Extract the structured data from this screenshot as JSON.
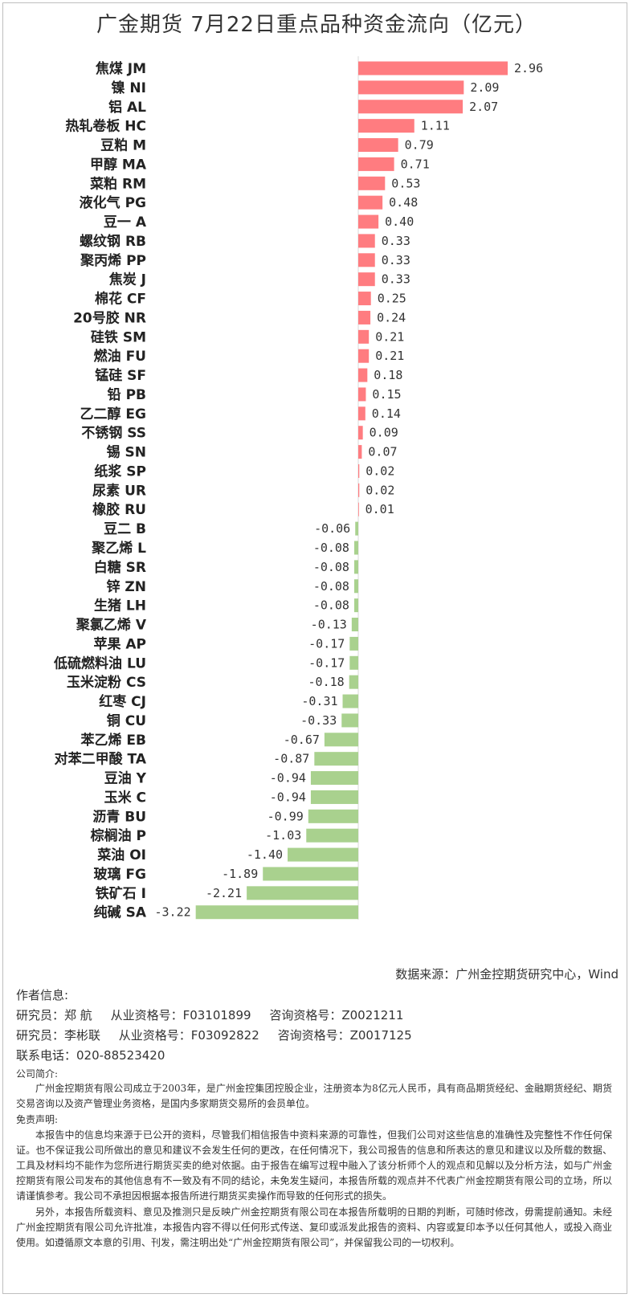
{
  "title": "广金期货 7月22日重点品种资金流向（亿元）",
  "chart_data": {
    "type": "bar",
    "orientation": "horizontal",
    "title": "广金期货 7月22日重点品种资金流向（亿元）",
    "positive_color": "#ff7c80",
    "negative_color": "#a9d18e",
    "categories": [
      "焦煤 JM",
      "镍 NI",
      "铝 AL",
      "热轧卷板 HC",
      "豆粕 M",
      "甲醇 MA",
      "菜粕 RM",
      "液化气 PG",
      "豆一 A",
      "螺纹钢 RB",
      "聚丙烯 PP",
      "焦炭 J",
      "棉花 CF",
      "20号胶 NR",
      "硅铁 SM",
      "燃油 FU",
      "锰硅 SF",
      "铅 PB",
      "乙二醇 EG",
      "不锈钢 SS",
      "锡 SN",
      "纸浆 SP",
      "尿素 UR",
      "橡胶 RU",
      "豆二 B",
      "聚乙烯 L",
      "白糖 SR",
      "锌 ZN",
      "生猪 LH",
      "聚氯乙烯 V",
      "苹果 AP",
      "低硫燃料油 LU",
      "玉米淀粉 CS",
      "红枣 CJ",
      "铜 CU",
      "苯乙烯 EB",
      "对苯二甲酸 TA",
      "豆油 Y",
      "玉米 C",
      "沥青 BU",
      "棕榈油 P",
      "菜油 OI",
      "玻璃 FG",
      "铁矿石 I",
      "纯碱 SA"
    ],
    "values": [
      2.96,
      2.09,
      2.07,
      1.11,
      0.79,
      0.71,
      0.53,
      0.48,
      0.4,
      0.33,
      0.33,
      0.33,
      0.25,
      0.24,
      0.21,
      0.21,
      0.18,
      0.15,
      0.14,
      0.09,
      0.07,
      0.02,
      0.02,
      0.01,
      -0.06,
      -0.08,
      -0.08,
      -0.08,
      -0.08,
      -0.13,
      -0.17,
      -0.17,
      -0.18,
      -0.31,
      -0.33,
      -0.67,
      -0.87,
      -0.94,
      -0.94,
      -0.99,
      -1.03,
      -1.4,
      -1.89,
      -2.21,
      -3.22
    ],
    "value_labels": [
      "2.96",
      "2.09",
      "2.07",
      "1.11",
      "0.79",
      "0.71",
      "0.53",
      "0.48",
      "0.40",
      "0.33",
      "0.33",
      "0.33",
      "0.25",
      "0.24",
      "0.21",
      "0.21",
      "0.18",
      "0.15",
      "0.14",
      "0.09",
      "0.07",
      "0.02",
      "0.02",
      "0.01",
      "-0.06",
      "-0.08",
      "-0.08",
      "-0.08",
      "-0.08",
      "-0.13",
      "-0.17",
      "-0.17",
      "-0.18",
      "-0.31",
      "-0.33",
      "-0.67",
      "-0.87",
      "-0.94",
      "-0.94",
      "-0.99",
      "-1.03",
      "-1.40",
      "-1.89",
      "-2.21",
      "-3.22"
    ],
    "xlim": [
      -3.22,
      2.96
    ]
  },
  "source": "数据来源：广州金控期货研究中心，Wind",
  "author": {
    "heading": "作者信息:",
    "r1_role": "研究员：郑 航",
    "r1_cert": "从业资格号：F03101899",
    "r1_consult": "咨询资格号：Z0021211",
    "r2_role": "研究员：李彬联",
    "r2_cert": "从业资格号：F03092822",
    "r2_consult": "咨询资格号：Z0017125",
    "phone": "联系电话：020-88523420"
  },
  "company": {
    "heading": "公司简介:",
    "text": "广州金控期货有限公司成立于2003年，是广州金控集团控股企业，注册资本为8亿元人民币，具有商品期货经纪、金融期货经纪、期货交易咨询以及资产管理业务资格，是国内多家期货交易所的会员单位。"
  },
  "disclaimer": {
    "heading": "免责声明:",
    "p1": "本报告中的信息均来源于已公开的资料，尽管我们相信报告中资料来源的可靠性，但我们公司对这些信息的准确性及完整性不作任何保证。也不保证我公司所做出的意见和建议不会发生任何的更改，在任何情况下，我公司报告的信息和所表达的意见和建议以及所载的数据、工具及材料均不能作为您所进行期货买卖的绝对依据。由于报告在编写过程中融入了该分析师个人的观点和见解以及分析方法，如与广州金控期货有限公司发布的其他信息有不一致及有不同的结论，未免发生疑问，本报告所载的观点并不代表广州金控期货有限公司的立场，所以请谨慎参考。我公司不承担因根据本报告所进行期货买卖操作而导致的任何形式的损失。",
    "p2": "另外，本报告所载资料、意见及推测只是反映广州金控期货有限公司在本报告所载明的日期的判断，可随时修改，毋需提前通知。未经广州金控期货有限公司允许批准，本报告内容不得以任何形式传送、复印或派发此报告的资料、内容或复印本予以任何其他人，或投入商业使用。如遵循原文本意的引用、刊发，需注明出处“广州金控期货有限公司”，并保留我公司的一切权利。"
  }
}
